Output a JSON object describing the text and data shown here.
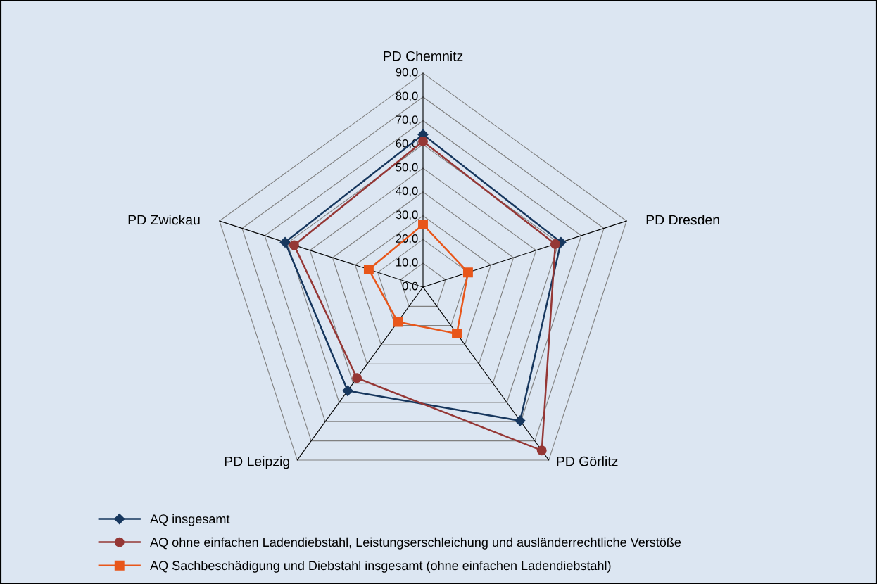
{
  "chart_data": {
    "type": "radar",
    "categories": [
      "PD Chemnitz",
      "PD Dresden",
      "PD Görlitz",
      "PD Leipzig",
      "PD Zwickau"
    ],
    "series": [
      {
        "name": "AQ insgesamt",
        "color": "#17375e",
        "marker": "diamond",
        "values": [
          64.2,
          61.0,
          69.5,
          53.9,
          61.0
        ]
      },
      {
        "name": "AQ ohne einfachen Ladendiebstahl, Leistungserschleichung und ausländerrechtliche Verstöße",
        "color": "#953735",
        "marker": "circle",
        "values": [
          61.3,
          58.5,
          85.0,
          47.3,
          57.0
        ]
      },
      {
        "name": "AQ Sachbeschädigung und Diebstahl insgesamt (ohne einfachen Ladendiebstahl)",
        "color": "#e8561a",
        "marker": "square",
        "values": [
          26.3,
          19.9,
          24.2,
          18.1,
          24.0
        ]
      }
    ],
    "ylim": [
      0,
      90
    ],
    "yticks": [
      {
        "value": 0,
        "label": "0,0"
      },
      {
        "value": 10,
        "label": "10,0"
      },
      {
        "value": 20,
        "label": "20,0"
      },
      {
        "value": 30,
        "label": "30,0"
      },
      {
        "value": 40,
        "label": "40,0"
      },
      {
        "value": 50,
        "label": "50,0"
      },
      {
        "value": 60,
        "label": "60,0"
      },
      {
        "value": 70,
        "label": "70,0"
      },
      {
        "value": 80,
        "label": "80,0"
      },
      {
        "value": 90,
        "label": "90,0"
      }
    ],
    "grid": true,
    "legend": "bottom left"
  }
}
